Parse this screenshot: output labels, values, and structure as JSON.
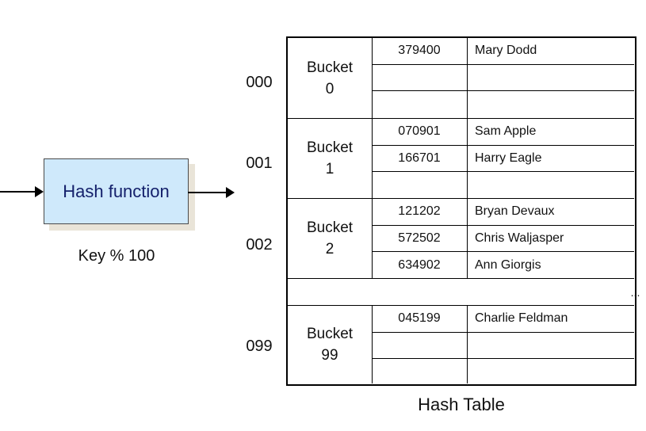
{
  "hash_function": {
    "label": "Hash function",
    "formula": "Key % 100"
  },
  "table_caption": "Hash Table",
  "ellipsis": "...",
  "buckets": [
    {
      "address": "000",
      "label_word": "Bucket",
      "label_num": "0",
      "rows": [
        {
          "key": "379400",
          "name": "Mary Dodd"
        },
        {
          "key": "",
          "name": ""
        },
        {
          "key": "",
          "name": ""
        }
      ]
    },
    {
      "address": "001",
      "label_word": "Bucket",
      "label_num": "1",
      "rows": [
        {
          "key": "070901",
          "name": "Sam Apple"
        },
        {
          "key": "166701",
          "name": "Harry Eagle"
        },
        {
          "key": "",
          "name": ""
        }
      ]
    },
    {
      "address": "002",
      "label_word": "Bucket",
      "label_num": "2",
      "rows": [
        {
          "key": "121202",
          "name": "Bryan Devaux"
        },
        {
          "key": "572502",
          "name": "Chris Waljasper"
        },
        {
          "key": "634902",
          "name": "Ann Giorgis"
        }
      ]
    },
    {
      "address": "099",
      "label_word": "Bucket",
      "label_num": "99",
      "rows": [
        {
          "key": "045199",
          "name": "Charlie Feldman"
        },
        {
          "key": "",
          "name": ""
        },
        {
          "key": "",
          "name": ""
        }
      ]
    }
  ]
}
